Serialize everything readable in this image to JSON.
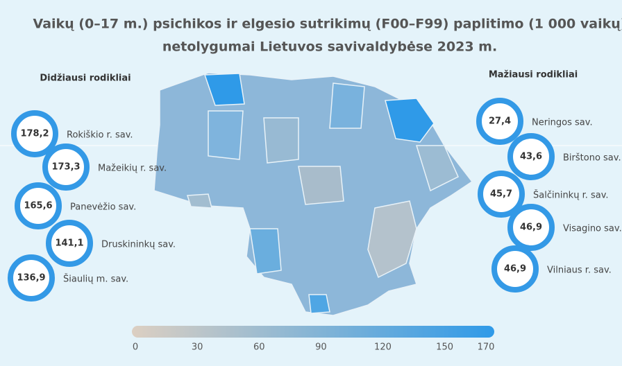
{
  "title": {
    "lines": [
      "Vaikų (0–17 m.) psichikos ir elgesio sutrikimų (F00–F99) paplitimo (1 000 vaikų)",
      "netolygumai Lietuvos savivaldybėse 2023 m."
    ]
  },
  "left": {
    "heading": "Didžiausi rodikliai",
    "items": [
      {
        "value": "178,2",
        "name": "Rokiškio r. sav."
      },
      {
        "value": "173,3",
        "name": "Mažeikių r. sav."
      },
      {
        "value": "165,6",
        "name": "Panevėžio sav."
      },
      {
        "value": "141,1",
        "name": "Druskininkų sav."
      },
      {
        "value": "136,9",
        "name": "Šiaulių m. sav."
      }
    ]
  },
  "right": {
    "heading": "Mažiausi rodikliai",
    "items": [
      {
        "value": "27,4",
        "name": "Neringos sav."
      },
      {
        "value": "43,6",
        "name": "Birštono sav."
      },
      {
        "value": "45,7",
        "name": "Šalčininkų r. sav."
      },
      {
        "value": "46,9",
        "name": "Visagino sav."
      },
      {
        "value": "46,9",
        "name": "Vilniaus r. sav."
      }
    ]
  },
  "scale": {
    "lim": [
      0,
      170
    ],
    "ticks": [
      0,
      30,
      60,
      90,
      120,
      150,
      170
    ],
    "colors": [
      "#dccfc2",
      "#2f9ae8"
    ]
  }
}
